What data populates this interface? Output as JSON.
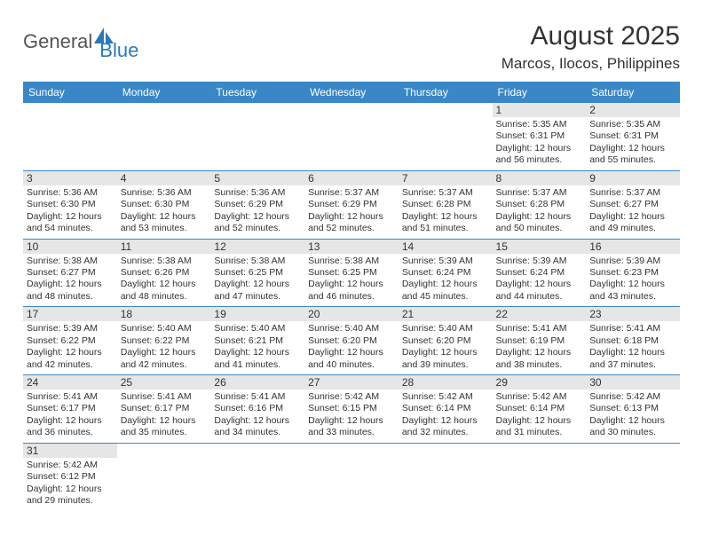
{
  "logo": {
    "text1": "General",
    "text2": "Blue"
  },
  "title": "August 2025",
  "subtitle": "Marcos, Ilocos, Philippines",
  "colors": {
    "header_bg": "#3a87c7",
    "header_fg": "#ffffff",
    "daynum_bg": "#e6e6e6",
    "border": "#3a87c7",
    "text": "#333333",
    "logo_gray": "#555555",
    "logo_blue": "#2a7ab9"
  },
  "weekdays": [
    "Sunday",
    "Monday",
    "Tuesday",
    "Wednesday",
    "Thursday",
    "Friday",
    "Saturday"
  ],
  "weeks": [
    [
      null,
      null,
      null,
      null,
      null,
      {
        "n": "1",
        "sr": "Sunrise: 5:35 AM",
        "ss": "Sunset: 6:31 PM",
        "d1": "Daylight: 12 hours",
        "d2": "and 56 minutes."
      },
      {
        "n": "2",
        "sr": "Sunrise: 5:35 AM",
        "ss": "Sunset: 6:31 PM",
        "d1": "Daylight: 12 hours",
        "d2": "and 55 minutes."
      }
    ],
    [
      {
        "n": "3",
        "sr": "Sunrise: 5:36 AM",
        "ss": "Sunset: 6:30 PM",
        "d1": "Daylight: 12 hours",
        "d2": "and 54 minutes."
      },
      {
        "n": "4",
        "sr": "Sunrise: 5:36 AM",
        "ss": "Sunset: 6:30 PM",
        "d1": "Daylight: 12 hours",
        "d2": "and 53 minutes."
      },
      {
        "n": "5",
        "sr": "Sunrise: 5:36 AM",
        "ss": "Sunset: 6:29 PM",
        "d1": "Daylight: 12 hours",
        "d2": "and 52 minutes."
      },
      {
        "n": "6",
        "sr": "Sunrise: 5:37 AM",
        "ss": "Sunset: 6:29 PM",
        "d1": "Daylight: 12 hours",
        "d2": "and 52 minutes."
      },
      {
        "n": "7",
        "sr": "Sunrise: 5:37 AM",
        "ss": "Sunset: 6:28 PM",
        "d1": "Daylight: 12 hours",
        "d2": "and 51 minutes."
      },
      {
        "n": "8",
        "sr": "Sunrise: 5:37 AM",
        "ss": "Sunset: 6:28 PM",
        "d1": "Daylight: 12 hours",
        "d2": "and 50 minutes."
      },
      {
        "n": "9",
        "sr": "Sunrise: 5:37 AM",
        "ss": "Sunset: 6:27 PM",
        "d1": "Daylight: 12 hours",
        "d2": "and 49 minutes."
      }
    ],
    [
      {
        "n": "10",
        "sr": "Sunrise: 5:38 AM",
        "ss": "Sunset: 6:27 PM",
        "d1": "Daylight: 12 hours",
        "d2": "and 48 minutes."
      },
      {
        "n": "11",
        "sr": "Sunrise: 5:38 AM",
        "ss": "Sunset: 6:26 PM",
        "d1": "Daylight: 12 hours",
        "d2": "and 48 minutes."
      },
      {
        "n": "12",
        "sr": "Sunrise: 5:38 AM",
        "ss": "Sunset: 6:25 PM",
        "d1": "Daylight: 12 hours",
        "d2": "and 47 minutes."
      },
      {
        "n": "13",
        "sr": "Sunrise: 5:38 AM",
        "ss": "Sunset: 6:25 PM",
        "d1": "Daylight: 12 hours",
        "d2": "and 46 minutes."
      },
      {
        "n": "14",
        "sr": "Sunrise: 5:39 AM",
        "ss": "Sunset: 6:24 PM",
        "d1": "Daylight: 12 hours",
        "d2": "and 45 minutes."
      },
      {
        "n": "15",
        "sr": "Sunrise: 5:39 AM",
        "ss": "Sunset: 6:24 PM",
        "d1": "Daylight: 12 hours",
        "d2": "and 44 minutes."
      },
      {
        "n": "16",
        "sr": "Sunrise: 5:39 AM",
        "ss": "Sunset: 6:23 PM",
        "d1": "Daylight: 12 hours",
        "d2": "and 43 minutes."
      }
    ],
    [
      {
        "n": "17",
        "sr": "Sunrise: 5:39 AM",
        "ss": "Sunset: 6:22 PM",
        "d1": "Daylight: 12 hours",
        "d2": "and 42 minutes."
      },
      {
        "n": "18",
        "sr": "Sunrise: 5:40 AM",
        "ss": "Sunset: 6:22 PM",
        "d1": "Daylight: 12 hours",
        "d2": "and 42 minutes."
      },
      {
        "n": "19",
        "sr": "Sunrise: 5:40 AM",
        "ss": "Sunset: 6:21 PM",
        "d1": "Daylight: 12 hours",
        "d2": "and 41 minutes."
      },
      {
        "n": "20",
        "sr": "Sunrise: 5:40 AM",
        "ss": "Sunset: 6:20 PM",
        "d1": "Daylight: 12 hours",
        "d2": "and 40 minutes."
      },
      {
        "n": "21",
        "sr": "Sunrise: 5:40 AM",
        "ss": "Sunset: 6:20 PM",
        "d1": "Daylight: 12 hours",
        "d2": "and 39 minutes."
      },
      {
        "n": "22",
        "sr": "Sunrise: 5:41 AM",
        "ss": "Sunset: 6:19 PM",
        "d1": "Daylight: 12 hours",
        "d2": "and 38 minutes."
      },
      {
        "n": "23",
        "sr": "Sunrise: 5:41 AM",
        "ss": "Sunset: 6:18 PM",
        "d1": "Daylight: 12 hours",
        "d2": "and 37 minutes."
      }
    ],
    [
      {
        "n": "24",
        "sr": "Sunrise: 5:41 AM",
        "ss": "Sunset: 6:17 PM",
        "d1": "Daylight: 12 hours",
        "d2": "and 36 minutes."
      },
      {
        "n": "25",
        "sr": "Sunrise: 5:41 AM",
        "ss": "Sunset: 6:17 PM",
        "d1": "Daylight: 12 hours",
        "d2": "and 35 minutes."
      },
      {
        "n": "26",
        "sr": "Sunrise: 5:41 AM",
        "ss": "Sunset: 6:16 PM",
        "d1": "Daylight: 12 hours",
        "d2": "and 34 minutes."
      },
      {
        "n": "27",
        "sr": "Sunrise: 5:42 AM",
        "ss": "Sunset: 6:15 PM",
        "d1": "Daylight: 12 hours",
        "d2": "and 33 minutes."
      },
      {
        "n": "28",
        "sr": "Sunrise: 5:42 AM",
        "ss": "Sunset: 6:14 PM",
        "d1": "Daylight: 12 hours",
        "d2": "and 32 minutes."
      },
      {
        "n": "29",
        "sr": "Sunrise: 5:42 AM",
        "ss": "Sunset: 6:14 PM",
        "d1": "Daylight: 12 hours",
        "d2": "and 31 minutes."
      },
      {
        "n": "30",
        "sr": "Sunrise: 5:42 AM",
        "ss": "Sunset: 6:13 PM",
        "d1": "Daylight: 12 hours",
        "d2": "and 30 minutes."
      }
    ],
    [
      {
        "n": "31",
        "sr": "Sunrise: 5:42 AM",
        "ss": "Sunset: 6:12 PM",
        "d1": "Daylight: 12 hours",
        "d2": "and 29 minutes."
      },
      null,
      null,
      null,
      null,
      null,
      null
    ]
  ]
}
